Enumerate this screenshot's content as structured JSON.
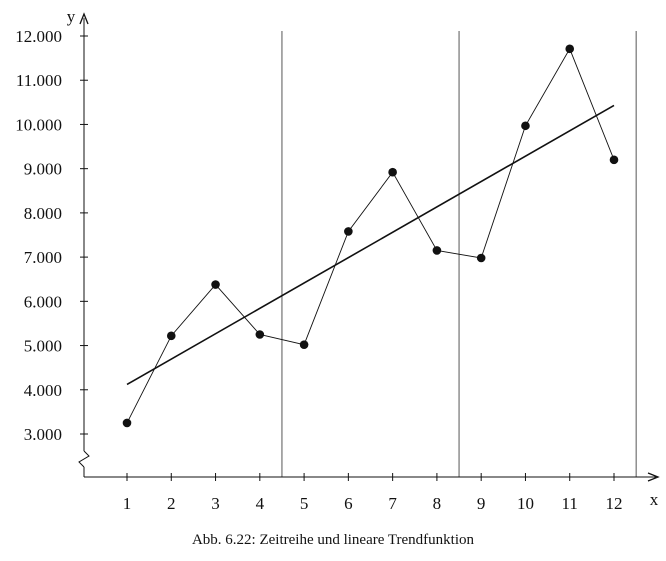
{
  "caption": "Abb. 6.22: Zeitreihe und lineare Trendfunktion",
  "chart_data": {
    "type": "line",
    "title": "",
    "xlabel": "x",
    "ylabel": "y",
    "x": [
      1,
      2,
      3,
      4,
      5,
      6,
      7,
      8,
      9,
      10,
      11,
      12
    ],
    "x_tick_labels": [
      "1",
      "2",
      "3",
      "4",
      "5",
      "6",
      "7",
      "8",
      "9",
      "10",
      "11",
      "12"
    ],
    "y_tick_labels": [
      "3.000",
      "4.000",
      "5.000",
      "6.000",
      "7.000",
      "8.000",
      "9.000",
      "10.000",
      "11.000",
      "12.000"
    ],
    "y_ticks": [
      3000,
      4000,
      5000,
      6000,
      7000,
      8000,
      9000,
      10000,
      11000,
      12000
    ],
    "ylim": [
      3000,
      12000
    ],
    "y_axis_break": true,
    "grid": false,
    "series": [
      {
        "values": [
          3250,
          5220,
          6380,
          5250,
          5020,
          7580,
          8920,
          7150,
          6980,
          9970,
          11710,
          9200
        ],
        "style": "points-connected",
        "color": "#111111"
      }
    ],
    "trend_line": {
      "from": {
        "x": 1,
        "y": 4120
      },
      "to": {
        "x": 12,
        "y": 10430
      },
      "color": "#111111"
    },
    "vertical_separators_x": [
      4.5,
      8.5,
      12.5
    ]
  }
}
